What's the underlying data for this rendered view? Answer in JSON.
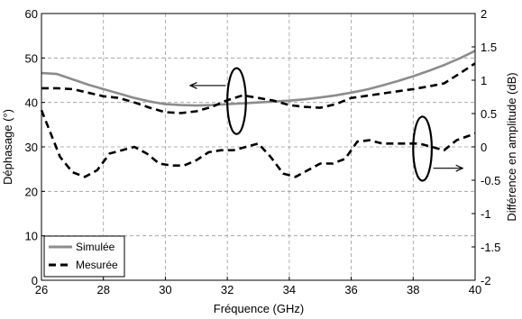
{
  "chart_data": {
    "type": "line",
    "xlabel": "Fréquence (GHz)",
    "ylabel": "Déphasage (°)",
    "y2label": "Différence en amplitude (dB)",
    "xlim": [
      26,
      40
    ],
    "ylim": [
      0,
      60
    ],
    "y2lim": [
      -2,
      2
    ],
    "x_ticks": [
      26,
      28,
      30,
      32,
      34,
      36,
      38,
      40
    ],
    "y_ticks": [
      0,
      10,
      20,
      30,
      40,
      50,
      60
    ],
    "y2_ticks": [
      -2,
      -1.5,
      -1,
      -0.5,
      0,
      0.5,
      1,
      1.5,
      2
    ],
    "y2_tick_labels": [
      "-2",
      "-1.5",
      "-1",
      "-0.5",
      "0",
      "0.5",
      "1",
      "1.5",
      "2"
    ],
    "grid": true,
    "legend_position": "bottom-left",
    "series": [
      {
        "name": "Simulée",
        "axis": "left",
        "style": "solid",
        "color": "#8c8c8c",
        "x": [
          26,
          26.5,
          27,
          27.5,
          28,
          28.5,
          29,
          29.5,
          30,
          30.5,
          31,
          31.5,
          32,
          32.5,
          33,
          33.5,
          34,
          34.5,
          35,
          35.5,
          36,
          36.5,
          37,
          37.5,
          38,
          38.5,
          39,
          39.5,
          40
        ],
        "y": [
          46.6,
          46.4,
          45.2,
          44.0,
          43.0,
          42.0,
          41.0,
          40.2,
          39.6,
          39.4,
          39.3,
          39.4,
          39.6,
          39.8,
          40.0,
          40.2,
          40.4,
          40.7,
          41.1,
          41.6,
          42.2,
          42.9,
          43.8,
          44.8,
          45.9,
          47.1,
          48.4,
          49.9,
          51.6
        ]
      },
      {
        "name": "Mesurée",
        "axis": "left",
        "style": "dashed",
        "color": "#000000",
        "x": [
          26,
          26.5,
          27,
          27.5,
          28,
          28.5,
          29,
          29.5,
          30,
          30.5,
          31,
          31.5,
          32,
          32.5,
          33,
          33.5,
          34,
          34.5,
          35,
          35.5,
          36,
          36.5,
          37,
          37.5,
          38,
          38.5,
          39,
          39.5,
          40
        ],
        "y": [
          43.2,
          43.2,
          43.0,
          42.2,
          41.4,
          41.0,
          40.0,
          38.8,
          37.8,
          37.6,
          38.0,
          39.0,
          40.5,
          41.6,
          41.0,
          40.4,
          39.4,
          39.0,
          38.8,
          39.6,
          41.0,
          41.5,
          42.0,
          42.5,
          43.0,
          43.6,
          44.3,
          46.5,
          48.8
        ]
      },
      {
        "name": "",
        "axis": "right",
        "style": "dashed",
        "color": "#000000",
        "x": [
          26,
          26.3,
          26.6,
          27,
          27.4,
          27.8,
          28.2,
          28.6,
          29,
          29.4,
          29.8,
          30.2,
          30.6,
          31,
          31.4,
          31.8,
          32.2,
          32.6,
          33,
          33.4,
          33.8,
          34.2,
          34.6,
          35,
          35.4,
          35.8,
          36.2,
          36.6,
          37,
          37.4,
          37.8,
          38.2,
          38.6,
          39,
          39.4,
          39.7,
          40
        ],
        "y": [
          0.55,
          0.2,
          -0.15,
          -0.38,
          -0.45,
          -0.35,
          -0.1,
          -0.05,
          0.0,
          -0.1,
          -0.25,
          -0.28,
          -0.28,
          -0.2,
          -0.08,
          -0.05,
          -0.05,
          0.0,
          0.05,
          -0.15,
          -0.4,
          -0.45,
          -0.35,
          -0.25,
          -0.25,
          -0.18,
          0.08,
          0.1,
          0.05,
          0.05,
          0.05,
          0.05,
          0.0,
          -0.05,
          0.1,
          0.15,
          0.2
        ]
      }
    ],
    "annotations": [
      {
        "type": "ellipse",
        "cx": 32.3,
        "cy": 40.3,
        "rx": 0.3,
        "ry": 7.4
      },
      {
        "type": "arrow",
        "x1": 31.95,
        "y1": 43.8,
        "x2": 30.8,
        "y2": 43.8
      },
      {
        "type": "ellipse",
        "cx": 38.3,
        "cy": 29.6,
        "rx": 0.3,
        "ry": 7.2
      },
      {
        "type": "arrow",
        "x1": 38.65,
        "y1": 25.2,
        "x2": 39.6,
        "y2": 25.2
      }
    ]
  }
}
